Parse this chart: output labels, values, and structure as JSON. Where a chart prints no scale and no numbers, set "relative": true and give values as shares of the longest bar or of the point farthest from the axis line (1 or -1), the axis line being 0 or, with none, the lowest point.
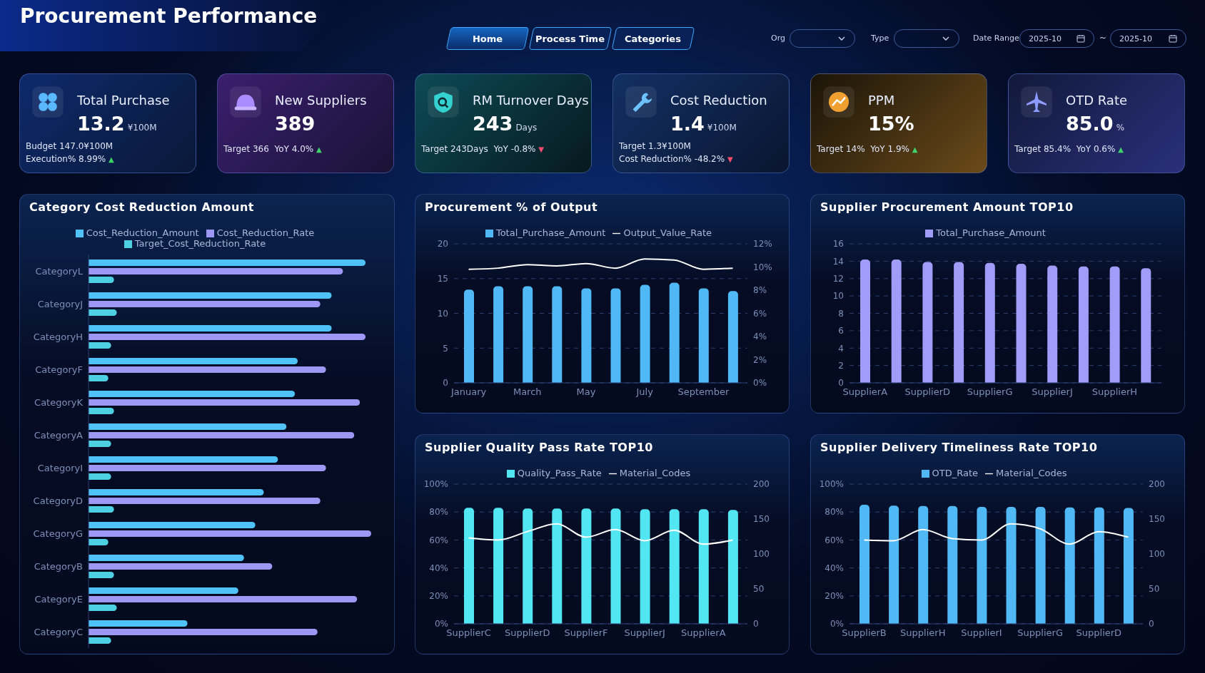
{
  "chart_data": [
    {
      "type": "other",
      "title": "Procurement Performance",
      "annotations": [
        "Home",
        "Process Time",
        "Categories",
        "Org",
        "Type",
        "Date Range",
        "2025-10",
        "~",
        "2025-10"
      ]
    },
    {
      "type": "other",
      "title": "Total Purchase",
      "subtitle": "¥100M",
      "annotations": [
        "13.2",
        "Budget 147.0¥100M",
        "Execution% 8.99% ▲"
      ]
    },
    {
      "type": "other",
      "title": "New Suppliers",
      "annotations": [
        "389",
        "Target 366  YoY 4.0% ▲"
      ]
    },
    {
      "type": "other",
      "title": "RM Turnover Days",
      "subtitle": "Days",
      "annotations": [
        "243",
        "Target 243Days  YoY -0.8% ▼"
      ]
    },
    {
      "type": "other",
      "title": "Cost Reduction",
      "subtitle": "¥100M",
      "annotations": [
        "1.4",
        "Target 1.3¥100M",
        "Cost Reduction% -48.2% ▼"
      ]
    },
    {
      "type": "other",
      "title": "PPM",
      "annotations": [
        "15%",
        "Target 14%  YoY 1.9% ▲"
      ]
    },
    {
      "type": "other",
      "title": "OTD Rate",
      "subtitle": "%",
      "annotations": [
        "85.0",
        "Target 85.4%  YoY 0.6% ▲"
      ]
    },
    {
      "type": "bar",
      "title": "Category Cost Reduction Amount",
      "orientation": "horizontal",
      "relative": true,
      "legend": "top",
      "categories": [
        "CategoryL",
        "CategoryJ",
        "CategoryH",
        "CategoryF",
        "CategoryK",
        "CategoryA",
        "CategoryI",
        "CategoryD",
        "CategoryG",
        "CategoryB",
        "CategoryE",
        "CategoryC"
      ],
      "series": [
        {
          "name": "Cost_Reduction_Amount",
          "color": "#4fc3f7",
          "values": [
            0.98,
            0.86,
            0.86,
            0.74,
            0.73,
            0.7,
            0.67,
            0.62,
            0.59,
            0.55,
            0.53,
            0.35
          ]
        },
        {
          "name": "Cost_Reduction_Rate",
          "color": "#9e98f5",
          "values": [
            0.9,
            0.82,
            0.98,
            0.84,
            0.96,
            0.94,
            0.84,
            0.82,
            1.0,
            0.65,
            0.95,
            0.81
          ]
        },
        {
          "name": "Target_Cost_Reduction_Rate",
          "color": "#4dd0e1",
          "values": [
            0.09,
            0.1,
            0.08,
            0.07,
            0.09,
            0.08,
            0.08,
            0.09,
            0.07,
            0.09,
            0.1,
            0.08
          ]
        }
      ]
    },
    {
      "type": "bar",
      "title": "Procurement % of Output",
      "grid": "y",
      "legend": "top",
      "categories": [
        "January",
        null,
        "March",
        null,
        "May",
        null,
        "July",
        null,
        "September",
        null
      ],
      "ylim": [
        0,
        20
      ],
      "yticks": [
        0,
        5,
        10,
        15,
        20
      ],
      "y2lim": [
        0,
        12
      ],
      "y2ticks": [
        {
          "value": 0,
          "label": "0%"
        },
        {
          "value": 2,
          "label": "2%"
        },
        {
          "value": 4,
          "label": "4%"
        },
        {
          "value": 6,
          "label": "6%"
        },
        {
          "value": 8,
          "label": "8%"
        },
        {
          "value": 10,
          "label": "10%"
        },
        {
          "value": 12,
          "label": "12%"
        }
      ],
      "series": [
        {
          "name": "Total_Purchase_Amount",
          "type": "bar",
          "color": "#4fb8f5",
          "values": [
            13.4,
            13.9,
            13.9,
            13.9,
            13.6,
            13.6,
            14.1,
            14.4,
            13.6,
            13.2
          ]
        },
        {
          "name": "Output_Value_Rate",
          "type": "line",
          "axis": "y2",
          "color": "#ffffff",
          "values": [
            9.8,
            9.9,
            10.2,
            10.1,
            10.3,
            9.9,
            10.7,
            10.6,
            9.8,
            9.9
          ]
        }
      ]
    },
    {
      "type": "bar",
      "title": "Supplier Procurement Amount TOP10",
      "grid": "y",
      "legend": "top",
      "categories": [
        "SupplierA",
        null,
        "SupplierD",
        null,
        "SupplierG",
        null,
        "SupplierJ",
        null,
        "SupplierH",
        null
      ],
      "ylim": [
        0,
        16
      ],
      "yticks": [
        0,
        2,
        4,
        6,
        8,
        10,
        12,
        14,
        16
      ],
      "series": [
        {
          "name": "Total_Purchase_Amount",
          "type": "bar",
          "color": "#a09cf8",
          "values": [
            14.2,
            14.2,
            13.9,
            13.9,
            13.8,
            13.7,
            13.5,
            13.4,
            13.4,
            13.2
          ]
        }
      ]
    },
    {
      "type": "bar",
      "title": "Supplier Quality Pass Rate TOP10",
      "grid": "y",
      "legend": "top",
      "categories": [
        "SupplierC",
        null,
        "SupplierD",
        null,
        "SupplierF",
        null,
        "SupplierJ",
        null,
        "SupplierA",
        null
      ],
      "ylim": [
        0,
        100
      ],
      "yticks": [
        {
          "value": 0,
          "label": "0%"
        },
        {
          "value": 20,
          "label": "20%"
        },
        {
          "value": 40,
          "label": "40%"
        },
        {
          "value": 60,
          "label": "60%"
        },
        {
          "value": 80,
          "label": "80%"
        },
        {
          "value": 100,
          "label": "100%"
        }
      ],
      "y2lim": [
        0,
        200
      ],
      "y2ticks": [
        0,
        50,
        100,
        150,
        200
      ],
      "series": [
        {
          "name": "Quality_Pass_Rate",
          "type": "bar",
          "color": "#52e5f2",
          "values": [
            83,
            83,
            82.5,
            82.5,
            82.5,
            82.5,
            82,
            82,
            82,
            81.5
          ]
        },
        {
          "name": "Material_Codes",
          "type": "line",
          "axis": "y2",
          "color": "#ffffff",
          "values": [
            123,
            120,
            132,
            143,
            124,
            135,
            119,
            134,
            114,
            120
          ]
        }
      ]
    },
    {
      "type": "bar",
      "title": "Supplier Delivery Timeliness Rate TOP10",
      "grid": "y",
      "legend": "top",
      "categories": [
        "SupplierB",
        null,
        "SupplierH",
        null,
        "SupplierI",
        null,
        "SupplierG",
        null,
        "SupplierD",
        null
      ],
      "ylim": [
        0,
        100
      ],
      "yticks": [
        {
          "value": 0,
          "label": "0%"
        },
        {
          "value": 20,
          "label": "20%"
        },
        {
          "value": 40,
          "label": "40%"
        },
        {
          "value": 60,
          "label": "60%"
        },
        {
          "value": 80,
          "label": "80%"
        },
        {
          "value": 100,
          "label": "100%"
        }
      ],
      "y2lim": [
        0,
        200
      ],
      "y2ticks": [
        0,
        50,
        100,
        150,
        200
      ],
      "series": [
        {
          "name": "OTD_Rate",
          "type": "bar",
          "color": "#4fb8f5",
          "values": [
            85.2,
            84.6,
            84.3,
            84.3,
            83.7,
            83.7,
            83.7,
            83.3,
            83.3,
            82.9
          ]
        },
        {
          "name": "Material_Codes",
          "type": "line",
          "axis": "y2",
          "color": "#ffffff",
          "values": [
            120,
            119,
            135,
            122,
            120,
            143,
            136,
            114,
            132,
            124
          ]
        }
      ]
    }
  ]
}
